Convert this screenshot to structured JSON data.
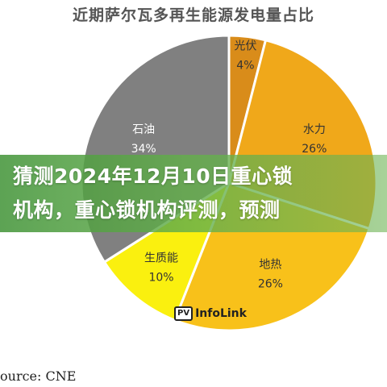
{
  "chart_data": {
    "type": "pie",
    "title": "近期萨尔瓦多再生能源发电量占比",
    "slices": [
      {
        "label": "光伏",
        "value": 4,
        "pct_text": "4%",
        "color": "#d98c1a"
      },
      {
        "label": "水力",
        "value": 26,
        "pct_text": "26%",
        "color": "#f0a81a"
      },
      {
        "label": "地热",
        "value": 26,
        "pct_text": "26%",
        "color": "#f8c11a"
      },
      {
        "label": "生质能",
        "value": 10,
        "pct_text": "10%",
        "color": "#faf00f"
      },
      {
        "label": "石油",
        "value": 34,
        "pct_text": "34%",
        "color": "#808080"
      }
    ]
  },
  "overlay": {
    "line1": "猜测2024年12月10日重心锁",
    "line2": "机构，重心锁机构评测，预测"
  },
  "logo": {
    "mark": "PV",
    "text": "InfoLink"
  },
  "source": "ource: CNE"
}
